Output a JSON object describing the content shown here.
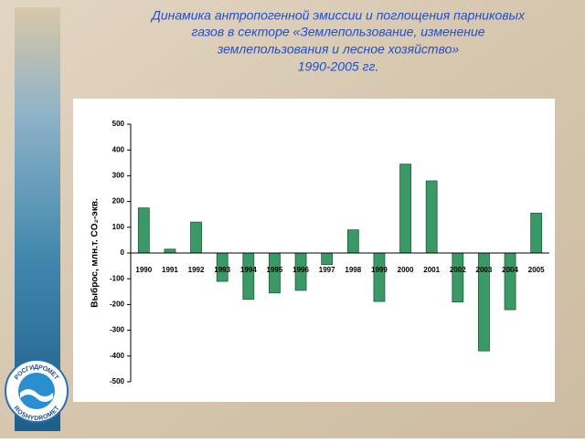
{
  "chart_data": {
    "type": "bar",
    "title": [
      "Динамика антропогенной эмиссии и поглощения парниковых",
      "газов в секторе «Землепользование, изменение",
      "землепользования и лесное хозяйство»",
      "1990-2005 гг."
    ],
    "ylabel": "Выброс, млн.т. CO₂-экв.",
    "categories": [
      "1990",
      "1991",
      "1992",
      "1993",
      "1994",
      "1995",
      "1996",
      "1997",
      "1998",
      "1999",
      "2000",
      "2001",
      "2002",
      "2003",
      "2004",
      "2005"
    ],
    "values": [
      175,
      15,
      120,
      -110,
      -180,
      -155,
      -145,
      -45,
      90,
      -188,
      345,
      280,
      -190,
      -380,
      -220,
      155
    ],
    "color": "#3a9a66",
    "ylim": [
      -500,
      500
    ],
    "yticks": [
      -500,
      -400,
      -300,
      -200,
      -100,
      0,
      100,
      200,
      300,
      400,
      500
    ],
    "grid": false
  },
  "logo": {
    "top": "РОСГИДРОМЕТ",
    "bottom": "ROSHYDROMET"
  }
}
